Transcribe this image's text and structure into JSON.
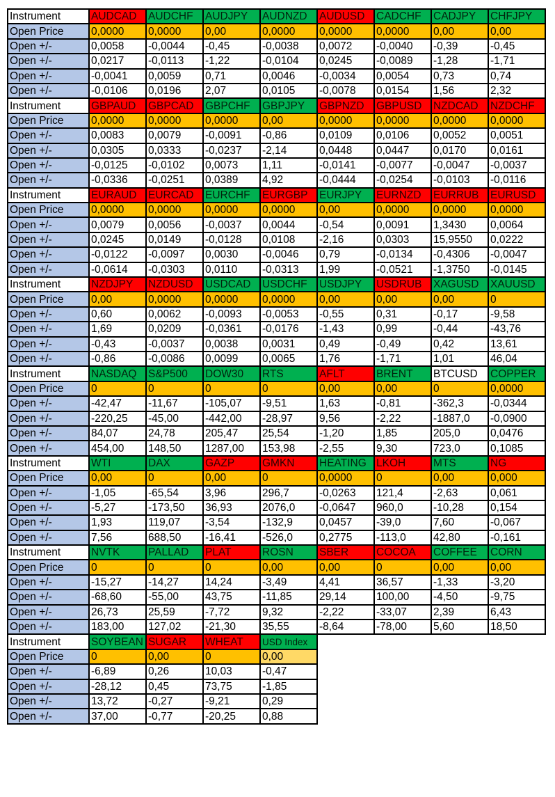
{
  "labels": {
    "instrument": "Instrument",
    "open_price": "Open Price",
    "open_change": "Open +/-"
  },
  "colors": {
    "red": "#ff0000",
    "green": "#00b050",
    "open_price": "#ffc000",
    "label": "#b4c7e7"
  },
  "blocks": [
    {
      "instruments": [
        {
          "name": "AUDCAD",
          "color": "red",
          "open": "0,0000",
          "changes": [
            "0,0058",
            "0,0217",
            "-0,0041",
            "-0,0106"
          ]
        },
        {
          "name": "AUDCHF",
          "color": "green",
          "open": "0,0000",
          "changes": [
            "-0,0044",
            "-0,0113",
            "0,0059",
            "0,0196"
          ]
        },
        {
          "name": "AUDJPY",
          "color": "green",
          "open": "0,00",
          "changes": [
            "-0,45",
            "-1,22",
            "0,71",
            "2,07"
          ]
        },
        {
          "name": "AUDNZD",
          "color": "green",
          "open": "0,0000",
          "changes": [
            "-0,0038",
            "-0,0104",
            "0,0046",
            "0,0105"
          ]
        },
        {
          "name": "AUDUSD",
          "color": "red",
          "open": "0,0000",
          "changes": [
            "0,0072",
            "0,0245",
            "-0,0034",
            "-0,0078"
          ]
        },
        {
          "name": "CADCHF",
          "color": "green",
          "open": "0,0000",
          "changes": [
            "-0,0040",
            "-0,0089",
            "0,0054",
            "0,0154"
          ]
        },
        {
          "name": "CADJPY",
          "color": "green",
          "open": "0,00",
          "changes": [
            "-0,39",
            "-1,28",
            "0,73",
            "1,56"
          ]
        },
        {
          "name": "CHFJPY",
          "color": "green",
          "open": "0,00",
          "changes": [
            "-0,45",
            "-1,71",
            "0,74",
            "2,32"
          ]
        }
      ]
    },
    {
      "instruments": [
        {
          "name": "GBPAUD",
          "color": "red",
          "open": "0,0000",
          "changes": [
            "0,0083",
            "0,0305",
            "-0,0125",
            "-0,0336"
          ]
        },
        {
          "name": "GBPCAD",
          "color": "red",
          "open": "0,0000",
          "changes": [
            "0,0079",
            "0,0333",
            "-0,0102",
            "-0,0251"
          ]
        },
        {
          "name": "GBPCHF",
          "color": "green",
          "open": "0,0000",
          "changes": [
            "-0,0091",
            "-0,0237",
            "0,0073",
            "0,0389"
          ]
        },
        {
          "name": "GBPJPY",
          "color": "green",
          "open": "0,00",
          "changes": [
            "-0,86",
            "-2,14",
            "1,11",
            "4,92"
          ]
        },
        {
          "name": "GBPNZD",
          "color": "red",
          "open": "0,0000",
          "changes": [
            "0,0109",
            "0,0448",
            "-0,0141",
            "-0,0444"
          ]
        },
        {
          "name": "GBPUSD",
          "color": "red",
          "open": "0,0000",
          "changes": [
            "0,0106",
            "0,0447",
            "-0,0077",
            "-0,0254"
          ]
        },
        {
          "name": "NZDCAD",
          "color": "red",
          "open": "0,0000",
          "changes": [
            "0,0052",
            "0,0170",
            "-0,0047",
            "-0,0103"
          ]
        },
        {
          "name": "NZDCHF",
          "color": "red",
          "open": "0,0000",
          "changes": [
            "0,0051",
            "0,0161",
            "-0,0037",
            "-0,0116"
          ]
        }
      ]
    },
    {
      "instruments": [
        {
          "name": "EURAUD",
          "color": "red",
          "open": "0,0000",
          "changes": [
            "0,0079",
            "0,0245",
            "-0,0122",
            "-0,0614"
          ]
        },
        {
          "name": "EURCAD",
          "color": "red",
          "open": "0,0000",
          "changes": [
            "0,0056",
            "0,0149",
            "-0,0097",
            "-0,0303"
          ]
        },
        {
          "name": "EURCHF",
          "color": "green",
          "open": "0,0000",
          "changes": [
            "-0,0037",
            "-0,0128",
            "0,0030",
            "0,0110"
          ]
        },
        {
          "name": "EURGBP",
          "color": "red",
          "open": "0,0000",
          "changes": [
            "0,0044",
            "0,0108",
            "-0,0046",
            "-0,0313"
          ]
        },
        {
          "name": "EURJPY",
          "color": "green",
          "open": "0,00",
          "changes": [
            "-0,54",
            "-2,16",
            "0,79",
            "1,99"
          ]
        },
        {
          "name": "EURNZD",
          "color": "red",
          "open": "0,0000",
          "changes": [
            "0,0091",
            "0,0303",
            "-0,0134",
            "-0,0521"
          ]
        },
        {
          "name": "EURRUB",
          "color": "red",
          "open": "0,0000",
          "changes": [
            "1,3430",
            "15,9550",
            "-0,4306",
            "-1,3750"
          ]
        },
        {
          "name": "EURUSD",
          "color": "red",
          "open": "0,0000",
          "changes": [
            "0,0064",
            "0,0222",
            "-0,0047",
            "-0,0145"
          ]
        }
      ]
    },
    {
      "instruments": [
        {
          "name": "NZDJPY",
          "color": "red",
          "open": "0,00",
          "changes": [
            "0,60",
            "1,69",
            "-0,43",
            "-0,86"
          ]
        },
        {
          "name": "NZDUSD",
          "color": "red",
          "open": "0,0000",
          "changes": [
            "0,0062",
            "0,0209",
            "-0,0037",
            "-0,0086"
          ]
        },
        {
          "name": "USDCAD",
          "color": "green",
          "open": "0,0000",
          "changes": [
            "-0,0093",
            "-0,0361",
            "0,0038",
            "0,0099"
          ]
        },
        {
          "name": "USDCHF",
          "color": "green",
          "open": "0,0000",
          "changes": [
            "-0,0053",
            "-0,0176",
            "0,0031",
            "0,0065"
          ]
        },
        {
          "name": "USDJPY",
          "color": "green",
          "open": "0,00",
          "changes": [
            "-0,55",
            "-1,43",
            "0,49",
            "1,76"
          ]
        },
        {
          "name": "USDRUB",
          "color": "red",
          "open": "0,00",
          "changes": [
            "0,31",
            "0,99",
            "-0,49",
            "-1,71"
          ]
        },
        {
          "name": "XAGUSD",
          "color": "green",
          "open": "0,00",
          "changes": [
            "-0,17",
            "-0,44",
            "0,42",
            "1,01"
          ]
        },
        {
          "name": "XAUUSD",
          "color": "green",
          "open": "0",
          "changes": [
            "-9,58",
            "-43,76",
            "13,61",
            "46,04"
          ]
        }
      ]
    },
    {
      "instruments": [
        {
          "name": "NASDAQ",
          "color": "green",
          "open": "0",
          "changes": [
            "-42,47",
            "-220,25",
            "84,07",
            "454,00"
          ]
        },
        {
          "name": "S&P500",
          "color": "green",
          "open": "0",
          "changes": [
            "-11,67",
            "-45,00",
            "24,78",
            "148,50"
          ]
        },
        {
          "name": "DOW30",
          "color": "green",
          "open": "0",
          "changes": [
            "-105,07",
            "-442,00",
            "205,47",
            "1287,00"
          ]
        },
        {
          "name": "RTS",
          "color": "green",
          "open": "0",
          "changes": [
            "-9,51",
            "-28,97",
            "25,54",
            "153,98"
          ]
        },
        {
          "name": "AFLT",
          "color": "red",
          "open": "0,00",
          "changes": [
            "1,63",
            "9,56",
            "-1,20",
            "-2,55"
          ]
        },
        {
          "name": "BRENT",
          "color": "green",
          "open": "0,00",
          "changes": [
            "-0,81",
            "-2,22",
            "1,85",
            "9,30"
          ]
        },
        {
          "name": "BTCUSD",
          "color": "white",
          "open": "0",
          "changes": [
            "-362,3",
            "-1887,0",
            "205,0",
            "723,0"
          ]
        },
        {
          "name": "COPPER",
          "color": "green",
          "open": "0,0000",
          "changes": [
            "-0,0344",
            "-0,0900",
            "0,0476",
            "0,1085"
          ]
        }
      ]
    },
    {
      "instruments": [
        {
          "name": "WTI",
          "color": "green",
          "open": "0,00",
          "changes": [
            "-1,05",
            "-5,27",
            "1,93",
            "7,56"
          ]
        },
        {
          "name": "DAX",
          "color": "green",
          "open": "0",
          "changes": [
            "-65,54",
            "-173,50",
            "119,07",
            "688,50"
          ]
        },
        {
          "name": "GAZP",
          "color": "red",
          "open": "0,00",
          "changes": [
            "3,96",
            "36,93",
            "-3,54",
            "-16,41"
          ]
        },
        {
          "name": "GMKN",
          "color": "red",
          "open": "0",
          "changes": [
            "296,7",
            "2076,0",
            "-132,9",
            "-526,0"
          ]
        },
        {
          "name": "HEATING",
          "color": "green",
          "open": "0,0000",
          "changes": [
            "-0,0263",
            "-0,0647",
            "0,0457",
            "0,2775"
          ]
        },
        {
          "name": "LKOH",
          "color": "red",
          "open": "0",
          "changes": [
            "121,4",
            "960,0",
            "-39,0",
            "-113,0"
          ]
        },
        {
          "name": "MTS",
          "color": "green",
          "open": "0,00",
          "changes": [
            "-2,63",
            "-10,28",
            "7,60",
            "42,80"
          ]
        },
        {
          "name": "NG",
          "color": "red",
          "open": "0,000",
          "changes": [
            "0,061",
            "0,154",
            "-0,067",
            "-0,161"
          ]
        }
      ]
    },
    {
      "instruments": [
        {
          "name": "NVTK",
          "color": "green",
          "open": "0",
          "changes": [
            "-15,27",
            "-68,60",
            "26,73",
            "183,00"
          ]
        },
        {
          "name": "PALLAD",
          "color": "green",
          "open": "0",
          "changes": [
            "-14,27",
            "-55,00",
            "25,59",
            "127,02"
          ]
        },
        {
          "name": "PLAT",
          "color": "red",
          "open": "0",
          "changes": [
            "14,24",
            "43,75",
            "-7,72",
            "-21,30"
          ]
        },
        {
          "name": "ROSN",
          "color": "green",
          "open": "0,00",
          "changes": [
            "-3,49",
            "-11,85",
            "9,32",
            "35,55"
          ]
        },
        {
          "name": "SBER",
          "color": "red",
          "open": "0,00",
          "changes": [
            "4,41",
            "29,14",
            "-2,22",
            "-8,64"
          ]
        },
        {
          "name": "COCOA",
          "color": "red",
          "open": "0",
          "changes": [
            "36,57",
            "100,00",
            "-33,07",
            "-78,00"
          ]
        },
        {
          "name": "COFFEE",
          "color": "green",
          "open": "0,00",
          "changes": [
            "-1,33",
            "-4,50",
            "2,39",
            "5,60"
          ]
        },
        {
          "name": "CORN",
          "color": "green",
          "open": "0,00",
          "changes": [
            "-3,20",
            "-9,75",
            "6,43",
            "18,50"
          ]
        }
      ]
    },
    {
      "instruments": [
        {
          "name": "SOYBEAN",
          "color": "green",
          "open": "0",
          "changes": [
            "-6,89",
            "-28,12",
            "13,72",
            "37,00"
          ]
        },
        {
          "name": "SUGAR",
          "color": "red",
          "open": "0,00",
          "changes": [
            "0,26",
            "0,45",
            "-0,27",
            "-0,77"
          ]
        },
        {
          "name": "WHEAT",
          "color": "red",
          "open": "0",
          "changes": [
            "10,03",
            "73,75",
            "-9,21",
            "-20,25"
          ]
        },
        {
          "name": "USD Index",
          "color": "green",
          "open": "0,00",
          "open_light": true,
          "small": true,
          "changes": [
            "-0,47",
            "-1,85",
            "0,29",
            "0,88"
          ]
        }
      ]
    }
  ]
}
